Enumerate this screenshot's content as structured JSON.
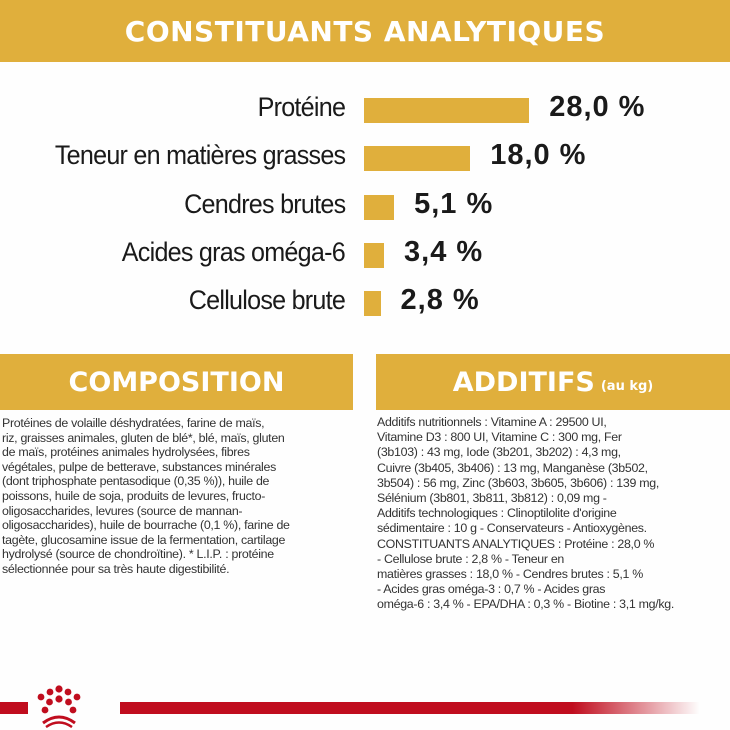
{
  "header": {
    "title": "CONSTITUANTS ANALYTIQUES"
  },
  "chart_data": {
    "type": "bar",
    "orientation": "horizontal",
    "categories": [
      "Protéine",
      "Teneur en matières grasses",
      "Cendres brutes",
      "Acides gras oméga-6",
      "Cellulose brute"
    ],
    "values": [
      28.0,
      18.0,
      5.1,
      3.4,
      2.8
    ],
    "value_labels": [
      "28,0 %",
      "18,0 %",
      "5,1 %",
      "3,4 %",
      "2,8 %"
    ],
    "bar_color": "#e0af3c",
    "grid": false
  },
  "composition": {
    "title": "COMPOSITION",
    "lines": [
      "Protéines de volaille déshydratées, farine de maïs,",
      "riz, graisses animales, gluten de blé*, blé, maïs, gluten",
      "de maïs, protéines animales hydrolysées, fibres",
      "végétales, pulpe de betterave, substances minérales",
      "(dont triphosphate pentasodique (0,35 %)), huile de",
      "poissons, huile de soja, produits de levures, fructo-",
      "oligosaccharides, levures (source de mannan-",
      "oligosaccharides), huile de bourrache (0,1 %), farine de",
      "tagète, glucosamine issue de la fermentation, cartilage",
      "hydrolysé (source de chondroïtine). * L.I.P. : protéine",
      "sélectionnée pour sa très haute digestibilité."
    ]
  },
  "additifs": {
    "title": "ADDITIFS",
    "subtitle": "(au kg)",
    "lines": [
      "Additifs nutritionnels : Vitamine A : 29500 UI,",
      "Vitamine D3 : 800 UI, Vitamine C : 300 mg, Fer",
      "(3b103) : 43 mg, Iode (3b201, 3b202) : 4,3 mg,",
      "Cuivre (3b405, 3b406) : 13 mg, Manganèse (3b502,",
      "3b504) : 56 mg, Zinc (3b603, 3b605, 3b606) : 139 mg,",
      "Sélénium (3b801, 3b811, 3b812) : 0,09 mg -",
      "Additifs technologiques : Clinoptilolite d'origine",
      "sédimentaire : 10 g - Conservateurs - Antioxygènes.",
      "CONSTITUANTS ANALYTIQUES : Protéine : 28,0 %",
      "- Cellulose brute : 2,8 % - Teneur en",
      "matières grasses : 18,0 % - Cendres brutes : 5,1 %",
      "- Acides gras oméga-3 : 0,7 % - Acides gras",
      "oméga-6 : 3,4 % - EPA/DHA : 0,3 % - Biotine : 3,1 mg/kg."
    ]
  },
  "footer": {
    "logo": "royal-canin-crown",
    "line_color": "#c00d1e"
  }
}
